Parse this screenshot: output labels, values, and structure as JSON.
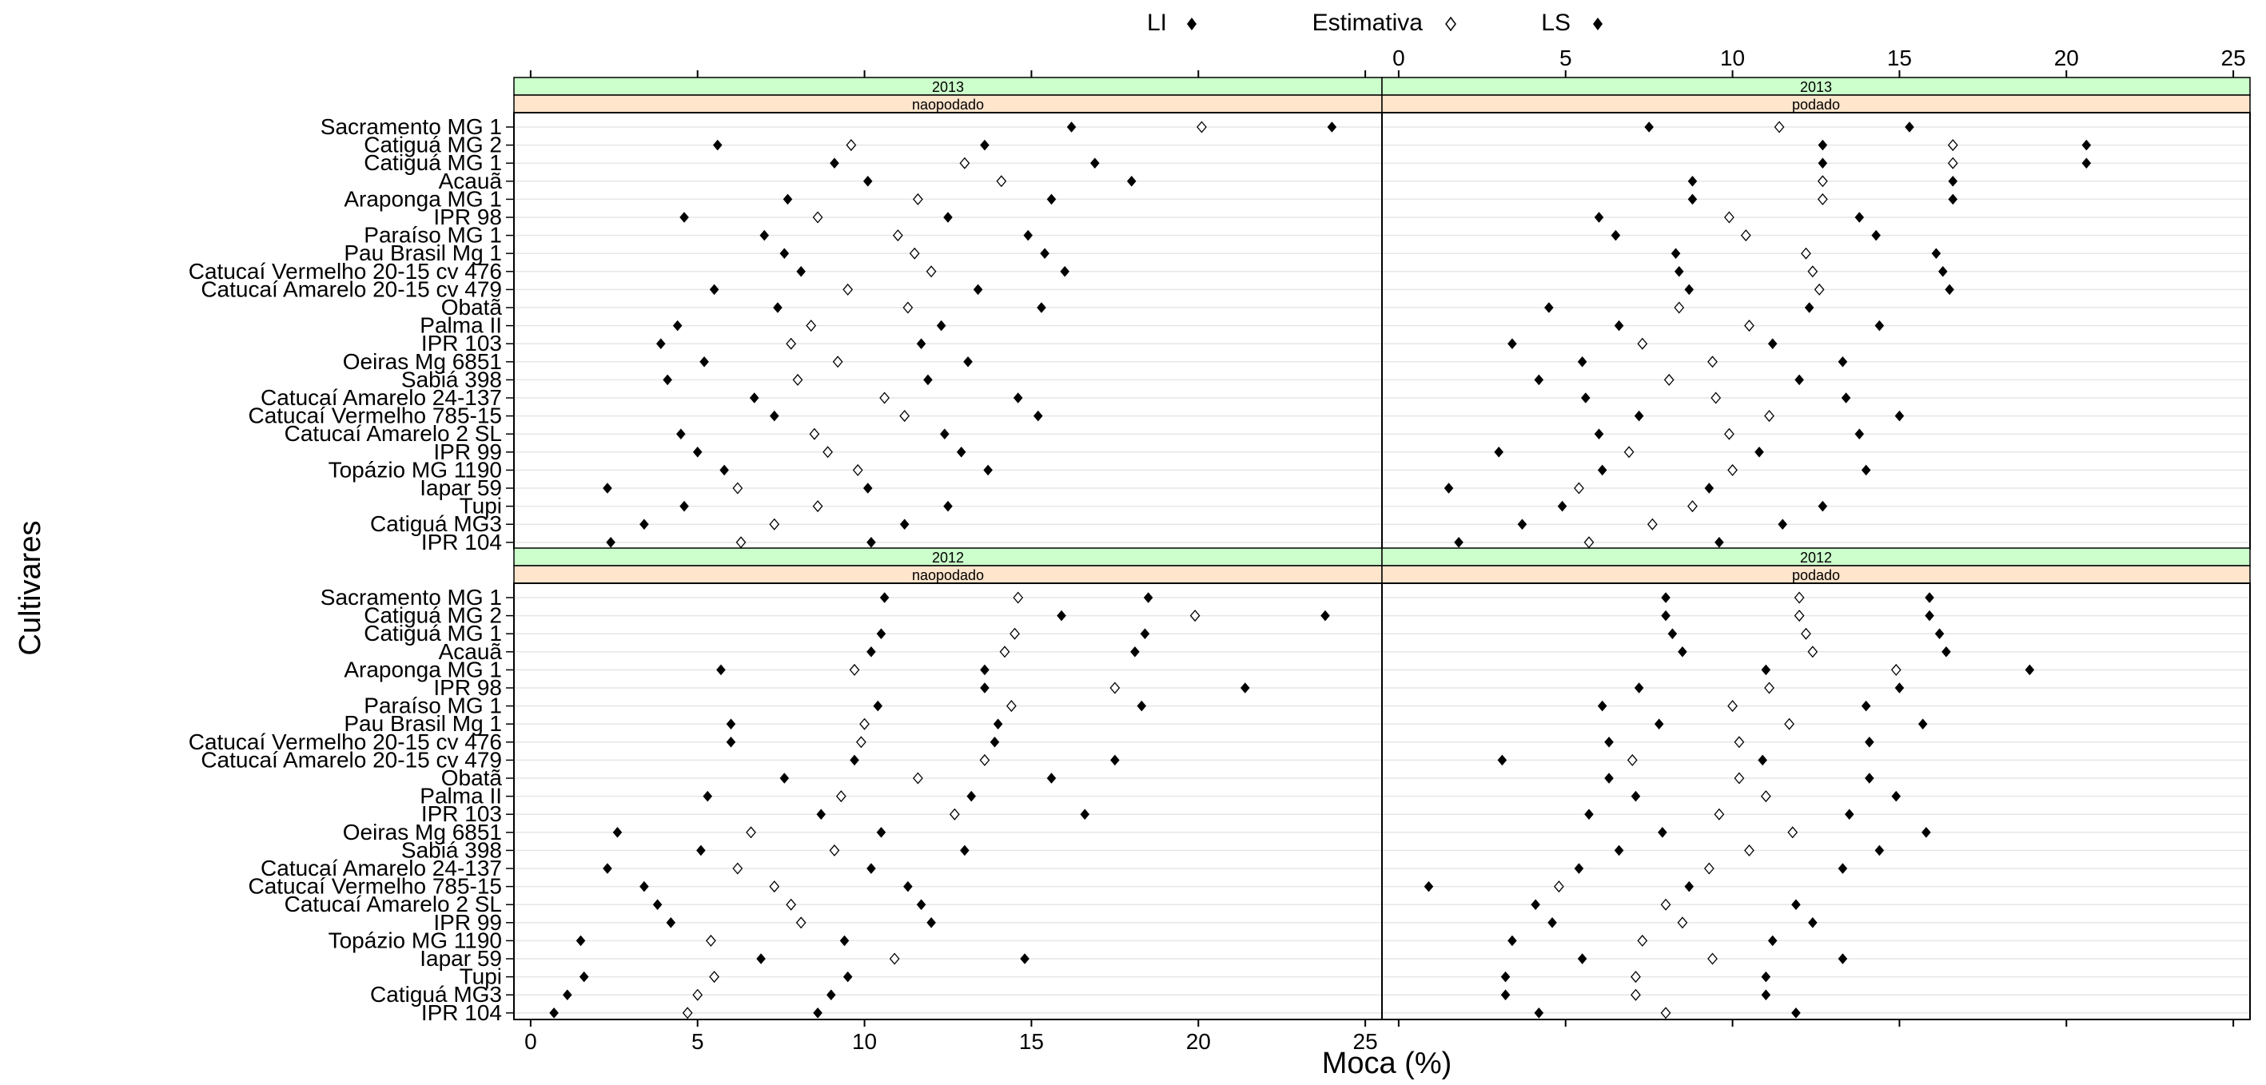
{
  "legend": {
    "items": [
      {
        "label": "LI",
        "marker": "filled-diamond"
      },
      {
        "label": "Estimativa",
        "marker": "open-diamond"
      },
      {
        "label": "LS",
        "marker": "filled-diamond"
      }
    ]
  },
  "colors": {
    "strip_year": "#ccffcc",
    "strip_treatment": "#ffe5cc",
    "point": "#000000",
    "grid": "#e6e6e6"
  },
  "chart_data": {
    "type": "scatter",
    "title": "",
    "xlabel": "Moca (%)",
    "ylabel": "Cultivares",
    "xlim": [
      -0.5,
      25.5
    ],
    "xticks": [
      0,
      5,
      10,
      15,
      20,
      25
    ],
    "grid": true,
    "legend_position": "top",
    "categories": [
      "Sacramento MG 1",
      "Catiguá MG 2",
      "Catiguá MG 1",
      "Acauã",
      "Araponga MG 1",
      "IPR 98",
      "Paraíso MG 1",
      "Pau Brasil Mg 1",
      "Catucaí Vermelho 20-15 cv 476",
      "Catucaí Amarelo 20-15 cv 479",
      "Obatã",
      "Palma II",
      "IPR 103",
      "Oeiras Mg 6851",
      "Sabiá 398",
      "Catucaí Amarelo 24-137",
      "Catucaí Vermelho 785-15",
      "Catucaí Amarelo 2 SL",
      "IPR 99",
      "Topázio MG 1190",
      "Iapar 59",
      "Tupi",
      "Catiguá MG3",
      "IPR 104"
    ],
    "series_names": [
      "LI",
      "Estimativa",
      "LS"
    ],
    "panels": [
      {
        "year": "2013",
        "treatment": "naopodado",
        "LI": [
          16.2,
          5.6,
          9.1,
          10.1,
          7.7,
          4.6,
          7.0,
          7.6,
          8.1,
          5.5,
          7.4,
          4.4,
          3.9,
          5.2,
          4.1,
          6.7,
          7.3,
          4.5,
          5.0,
          5.8,
          2.3,
          4.6,
          3.4,
          2.4
        ],
        "Estimativa": [
          20.1,
          9.6,
          13.0,
          14.1,
          11.6,
          8.6,
          11.0,
          11.5,
          12.0,
          9.5,
          11.3,
          8.4,
          7.8,
          9.2,
          8.0,
          10.6,
          11.2,
          8.5,
          8.9,
          9.8,
          6.2,
          8.6,
          7.3,
          6.3
        ],
        "LS": [
          24.0,
          13.6,
          16.9,
          18.0,
          15.6,
          12.5,
          14.9,
          15.4,
          16.0,
          13.4,
          15.3,
          12.3,
          11.7,
          13.1,
          11.9,
          14.6,
          15.2,
          12.4,
          12.9,
          13.7,
          10.1,
          12.5,
          11.2,
          10.2
        ]
      },
      {
        "year": "2013",
        "treatment": "podado",
        "LI": [
          7.5,
          12.7,
          12.7,
          8.8,
          8.8,
          6.0,
          6.5,
          8.3,
          8.4,
          8.7,
          4.5,
          6.6,
          3.4,
          5.5,
          4.2,
          5.6,
          7.2,
          6.0,
          3.0,
          6.1,
          1.5,
          4.9,
          3.7,
          1.8
        ],
        "Estimativa": [
          11.4,
          16.6,
          16.6,
          12.7,
          12.7,
          9.9,
          10.4,
          12.2,
          12.4,
          12.6,
          8.4,
          10.5,
          7.3,
          9.4,
          8.1,
          9.5,
          11.1,
          9.9,
          6.9,
          10.0,
          5.4,
          8.8,
          7.6,
          5.7
        ],
        "LS": [
          15.3,
          20.6,
          20.6,
          16.6,
          16.6,
          13.8,
          14.3,
          16.1,
          16.3,
          16.5,
          12.3,
          14.4,
          11.2,
          13.3,
          12.0,
          13.4,
          15.0,
          13.8,
          10.8,
          14.0,
          9.3,
          12.7,
          11.5,
          9.6
        ]
      },
      {
        "year": "2012",
        "treatment": "naopodado",
        "LI": [
          10.6,
          15.9,
          10.5,
          10.2,
          5.7,
          13.6,
          10.4,
          6.0,
          6.0,
          9.7,
          7.6,
          5.3,
          8.7,
          2.6,
          5.1,
          2.3,
          3.4,
          3.8,
          4.2,
          1.5,
          6.9,
          1.6,
          1.1,
          0.7
        ],
        "Estimativa": [
          14.6,
          19.9,
          14.5,
          14.2,
          9.7,
          17.5,
          14.4,
          10.0,
          9.9,
          13.6,
          11.6,
          9.3,
          12.7,
          6.6,
          9.1,
          6.2,
          7.3,
          7.8,
          8.1,
          5.4,
          10.9,
          5.5,
          5.0,
          4.7
        ],
        "LS": [
          18.5,
          23.8,
          18.4,
          18.1,
          13.6,
          21.4,
          18.3,
          14.0,
          13.9,
          17.5,
          15.6,
          13.2,
          16.6,
          10.5,
          13.0,
          10.2,
          11.3,
          11.7,
          12.0,
          9.4,
          14.8,
          9.5,
          9.0,
          8.6
        ]
      },
      {
        "year": "2012",
        "treatment": "podado",
        "LI": [
          8.0,
          8.0,
          8.2,
          8.5,
          11.0,
          7.2,
          6.1,
          7.8,
          6.3,
          3.1,
          6.3,
          7.1,
          5.7,
          7.9,
          6.6,
          5.4,
          0.9,
          4.1,
          4.6,
          3.4,
          5.5,
          3.2,
          3.2,
          4.2
        ],
        "Estimativa": [
          12.0,
          12.0,
          12.2,
          12.4,
          14.9,
          11.1,
          10.0,
          11.7,
          10.2,
          7.0,
          10.2,
          11.0,
          9.6,
          11.8,
          10.5,
          9.3,
          4.8,
          8.0,
          8.5,
          7.3,
          9.4,
          7.1,
          7.1,
          8.0
        ],
        "LS": [
          15.9,
          15.9,
          16.2,
          16.4,
          18.9,
          15.0,
          14.0,
          15.7,
          14.1,
          10.9,
          14.1,
          14.9,
          13.5,
          15.8,
          14.4,
          13.3,
          8.7,
          11.9,
          12.4,
          11.2,
          13.3,
          11.0,
          11.0,
          11.9
        ]
      }
    ]
  }
}
